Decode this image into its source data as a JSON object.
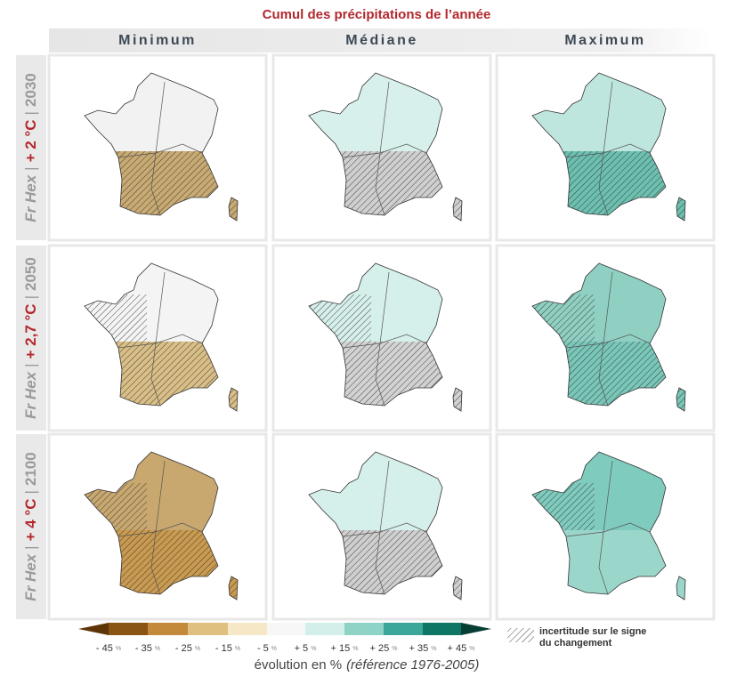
{
  "title": "Cumul des précipitations de l’année",
  "columns": [
    "Minimum",
    "Médiane",
    "Maximum"
  ],
  "separator": "|",
  "rows": [
    {
      "region": "Fr Hex",
      "warming": "+ 2 °C",
      "year": "2030"
    },
    {
      "region": "Fr Hex",
      "warming": "+ 2,7 °C",
      "year": "2050"
    },
    {
      "region": "Fr Hex",
      "warming": "+ 4 °C",
      "year": "2100"
    }
  ],
  "legend": {
    "tick_labels": [
      "- 45",
      "- 35",
      "- 25",
      "- 15",
      "- 5",
      "+ 5",
      "+ 15",
      "+ 25",
      "+ 35",
      "+ 45"
    ],
    "tick_unit": "%",
    "colors": [
      "#5e3507",
      "#8a5412",
      "#c28a3a",
      "#e0c081",
      "#f6e7c6",
      "#f7f7f7",
      "#d3efea",
      "#8fd3c6",
      "#3ba69a",
      "#0d7664",
      "#083f35"
    ],
    "caption": "évolution en %",
    "caption_reference": "(référence 1976-2005)",
    "hatch_label_line1": "incertitude sur le signe",
    "hatch_label_line2": "du changement"
  }
}
